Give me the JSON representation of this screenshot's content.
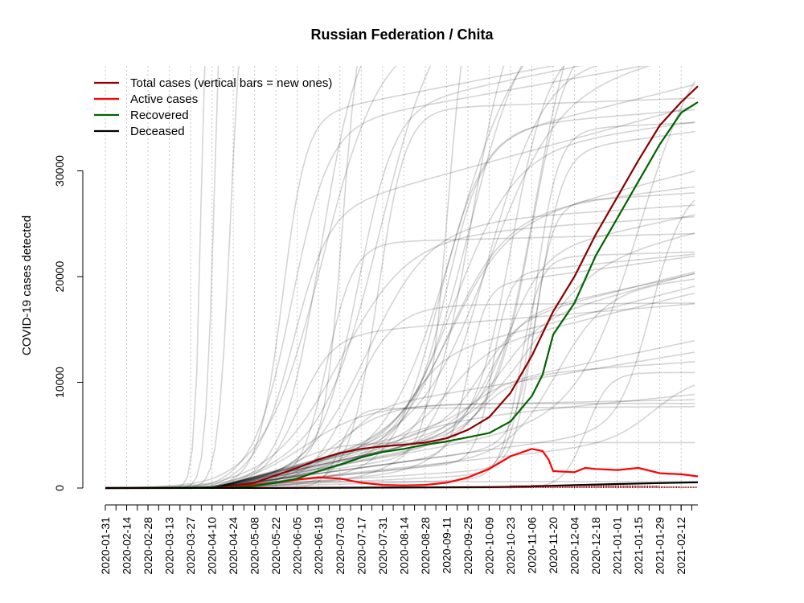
{
  "chart_data": {
    "type": "line",
    "title": "Russian Federation / Chita",
    "ylabel": "COVID-19 cases detected",
    "xlabel": "",
    "ylim": [
      0,
      36000
    ],
    "y_ticks": [
      0,
      10000,
      20000,
      30000
    ],
    "y_tick_labels": [
      "0",
      "10000",
      "20000",
      "30000"
    ],
    "x_tick_labels": [
      "2020-01-31",
      "2020-02-14",
      "2020-02-28",
      "2020-03-13",
      "2020-03-27",
      "2020-04-10",
      "2020-04-24",
      "2020-05-08",
      "2020-05-22",
      "2020-06-05",
      "2020-06-19",
      "2020-07-03",
      "2020-07-17",
      "2020-07-31",
      "2020-08-14",
      "2020-08-28",
      "2020-09-11",
      "2020-09-25",
      "2020-10-09",
      "2020-10-23",
      "2020-11-06",
      "2020-11-20",
      "2020-12-04",
      "2020-12-18",
      "2021-01-01",
      "2021-01-15",
      "2021-01-29",
      "2021-02-12"
    ],
    "x_range": [
      "2020-01-31",
      "2021-02-23"
    ],
    "grid": "vertical dotted",
    "legend_position": "top-left",
    "legend": [
      {
        "label": "Total cases (vertical bars = new ones)",
        "color": "#8B0000"
      },
      {
        "label": "Active cases",
        "color": "#FF0000"
      },
      {
        "label": "Recovered",
        "color": "#006400"
      },
      {
        "label": "Deceased",
        "color": "#000000"
      }
    ],
    "series": [
      {
        "name": "Total cases (vertical bars = new ones)",
        "color": "#8B0000",
        "points": [
          [
            "2020-01-31",
            0
          ],
          [
            "2020-04-10",
            20
          ],
          [
            "2020-04-24",
            150
          ],
          [
            "2020-05-08",
            500
          ],
          [
            "2020-05-22",
            1200
          ],
          [
            "2020-06-05",
            1900
          ],
          [
            "2020-06-19",
            2700
          ],
          [
            "2020-07-03",
            3300
          ],
          [
            "2020-07-17",
            3700
          ],
          [
            "2020-07-31",
            3950
          ],
          [
            "2020-08-14",
            4100
          ],
          [
            "2020-08-28",
            4300
          ],
          [
            "2020-09-11",
            4700
          ],
          [
            "2020-09-25",
            5500
          ],
          [
            "2020-10-09",
            6700
          ],
          [
            "2020-10-23",
            9000
          ],
          [
            "2020-11-06",
            12500
          ],
          [
            "2020-11-20",
            16700
          ],
          [
            "2020-12-04",
            20000
          ],
          [
            "2020-12-18",
            24000
          ],
          [
            "2021-01-01",
            27500
          ],
          [
            "2021-01-15",
            31000
          ],
          [
            "2021-01-29",
            34300
          ],
          [
            "2021-02-12",
            36500
          ],
          [
            "2021-02-23",
            38000
          ]
        ]
      },
      {
        "name": "Active cases",
        "color": "#FF0000",
        "points": [
          [
            "2020-01-31",
            0
          ],
          [
            "2020-04-10",
            10
          ],
          [
            "2020-04-24",
            100
          ],
          [
            "2020-05-08",
            300
          ],
          [
            "2020-05-22",
            500
          ],
          [
            "2020-06-05",
            800
          ],
          [
            "2020-06-19",
            1000
          ],
          [
            "2020-07-03",
            900
          ],
          [
            "2020-07-17",
            500
          ],
          [
            "2020-07-31",
            300
          ],
          [
            "2020-08-14",
            250
          ],
          [
            "2020-08-28",
            300
          ],
          [
            "2020-09-11",
            500
          ],
          [
            "2020-09-25",
            1000
          ],
          [
            "2020-10-09",
            1800
          ],
          [
            "2020-10-23",
            3000
          ],
          [
            "2020-11-06",
            3700
          ],
          [
            "2020-11-13",
            3500
          ],
          [
            "2020-11-17",
            2700
          ],
          [
            "2020-11-20",
            1600
          ],
          [
            "2020-12-04",
            1500
          ],
          [
            "2020-12-11",
            1900
          ],
          [
            "2020-12-18",
            1800
          ],
          [
            "2021-01-01",
            1700
          ],
          [
            "2021-01-15",
            1900
          ],
          [
            "2021-01-29",
            1400
          ],
          [
            "2021-02-12",
            1300
          ],
          [
            "2021-02-23",
            1100
          ]
        ]
      },
      {
        "name": "Recovered",
        "color": "#006400",
        "points": [
          [
            "2020-01-31",
            0
          ],
          [
            "2020-04-24",
            50
          ],
          [
            "2020-05-08",
            200
          ],
          [
            "2020-05-22",
            500
          ],
          [
            "2020-06-05",
            900
          ],
          [
            "2020-06-19",
            1600
          ],
          [
            "2020-07-03",
            2200
          ],
          [
            "2020-07-17",
            2900
          ],
          [
            "2020-07-31",
            3400
          ],
          [
            "2020-08-14",
            3700
          ],
          [
            "2020-08-28",
            4100
          ],
          [
            "2020-09-11",
            4400
          ],
          [
            "2020-09-25",
            4800
          ],
          [
            "2020-10-09",
            5200
          ],
          [
            "2020-10-23",
            6300
          ],
          [
            "2020-11-06",
            8700
          ],
          [
            "2020-11-13",
            10700
          ],
          [
            "2020-11-20",
            14500
          ],
          [
            "2020-12-04",
            17500
          ],
          [
            "2020-12-18",
            22000
          ],
          [
            "2021-01-01",
            25500
          ],
          [
            "2021-01-15",
            29000
          ],
          [
            "2021-01-29",
            32500
          ],
          [
            "2021-02-12",
            35500
          ],
          [
            "2021-02-23",
            36500
          ]
        ]
      },
      {
        "name": "Deceased",
        "color": "#000000",
        "points": [
          [
            "2020-01-31",
            0
          ],
          [
            "2020-05-22",
            10
          ],
          [
            "2020-07-03",
            30
          ],
          [
            "2020-08-28",
            60
          ],
          [
            "2020-10-09",
            80
          ],
          [
            "2020-11-06",
            150
          ],
          [
            "2020-12-04",
            280
          ],
          [
            "2021-01-01",
            380
          ],
          [
            "2021-01-29",
            470
          ],
          [
            "2021-02-23",
            540
          ]
        ]
      }
    ]
  }
}
